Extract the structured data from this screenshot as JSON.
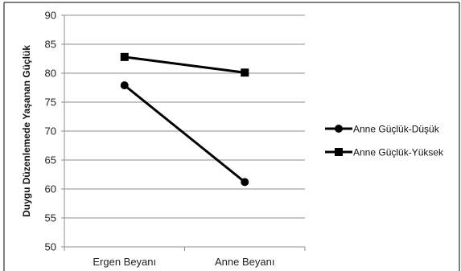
{
  "chart_data": {
    "type": "line",
    "title": "",
    "xlabel": "",
    "ylabel": "Duygu Düzenlemede Yaşanan Güçlük",
    "categories": [
      "Ergen Beyanı",
      "Anne Beyanı"
    ],
    "ylim": [
      50,
      90
    ],
    "yticks": [
      50,
      55,
      60,
      65,
      70,
      75,
      80,
      85,
      90
    ],
    "grid": true,
    "legend_position": "right",
    "series": [
      {
        "name": "Anne Güçlük-Düşük",
        "values": [
          77.9,
          61.2
        ],
        "marker": "circle",
        "color": "#000000"
      },
      {
        "name": "Anne Güçlük-Yüksek",
        "values": [
          82.8,
          80.1
        ],
        "marker": "square",
        "color": "#000000"
      }
    ]
  }
}
